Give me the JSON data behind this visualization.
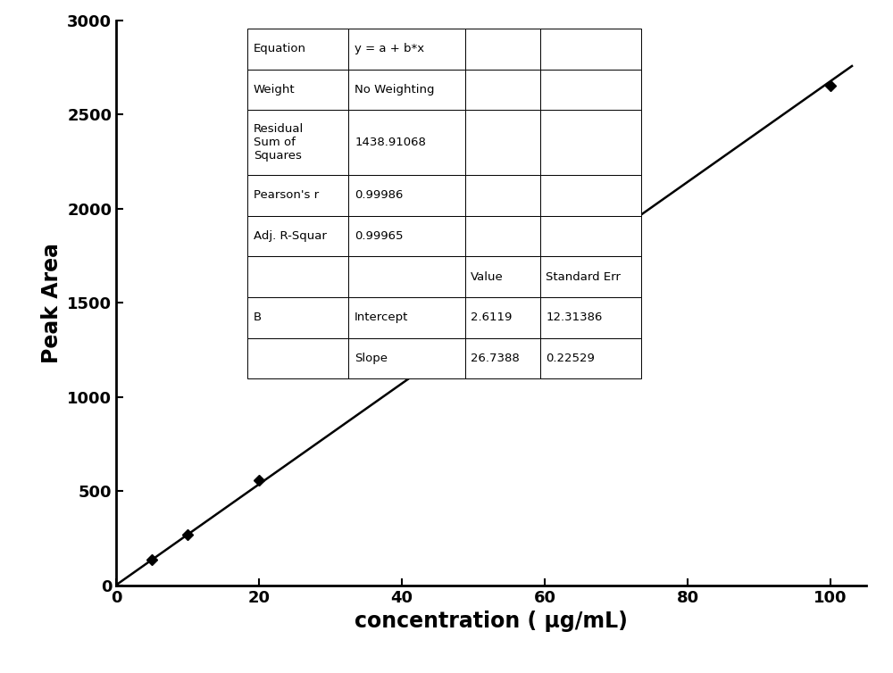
{
  "x_data": [
    5,
    10,
    20,
    50,
    70,
    100
  ],
  "y_data": [
    136,
    270,
    557,
    1316,
    1893,
    2651
  ],
  "intercept": 2.6119,
  "slope": 26.7388,
  "xlabel": "concentration ( μg/mL)",
  "ylabel": "Peak Area",
  "xlim": [
    0,
    105
  ],
  "ylim": [
    0,
    3000
  ],
  "xticks": [
    0,
    20,
    40,
    60,
    80,
    100
  ],
  "yticks": [
    0,
    500,
    1000,
    1500,
    2000,
    2500,
    3000
  ],
  "line_color": "#000000",
  "marker_color": "#000000",
  "marker_style": "D",
  "marker_size": 6,
  "line_width": 1.8,
  "background_color": "#ffffff",
  "label_fontsize": 17,
  "tick_fontsize": 13,
  "table_fontsize": 9.5,
  "table_rows": [
    [
      "Equation",
      "y = a + b*x",
      "",
      ""
    ],
    [
      "Weight",
      "No Weighting",
      "",
      ""
    ],
    [
      "Residual\nSum of\nSquares",
      "1438.91068",
      "",
      ""
    ],
    [
      "Pearson's r",
      "0.99986",
      "",
      ""
    ],
    [
      "Adj. R-Squar",
      "0.99965",
      "",
      ""
    ],
    [
      "",
      "",
      "Value",
      "Standard Err"
    ],
    [
      "B",
      "Intercept",
      "2.6119",
      "12.31386"
    ],
    [
      "",
      "Slope",
      "26.7388",
      "0.22529"
    ]
  ]
}
